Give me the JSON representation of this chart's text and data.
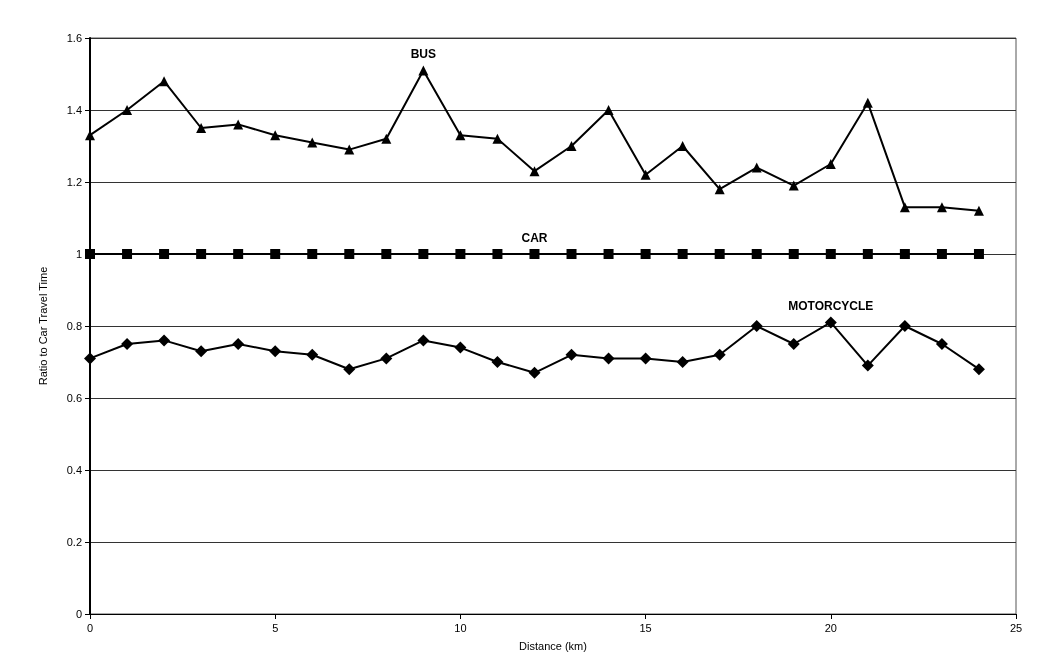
{
  "chart_data": {
    "type": "line",
    "xlabel": "Distance (km)",
    "ylabel": "Ratio to Car Travel Time",
    "x": [
      0,
      1,
      2,
      3,
      4,
      5,
      6,
      7,
      8,
      9,
      10,
      11,
      12,
      13,
      14,
      15,
      16,
      17,
      18,
      19,
      20,
      21,
      22,
      23,
      24
    ],
    "series": [
      {
        "name": "BUS",
        "color": "#000000",
        "marker": "triangle",
        "values": [
          1.33,
          1.4,
          1.48,
          1.35,
          1.36,
          1.33,
          1.31,
          1.29,
          1.32,
          1.51,
          1.33,
          1.32,
          1.23,
          1.3,
          1.4,
          1.22,
          1.3,
          1.18,
          1.24,
          1.19,
          1.25,
          1.42,
          1.13,
          1.13,
          1.12
        ]
      },
      {
        "name": "CAR",
        "color": "#000000",
        "marker": "square",
        "values": [
          1,
          1,
          1,
          1,
          1,
          1,
          1,
          1,
          1,
          1,
          1,
          1,
          1,
          1,
          1,
          1,
          1,
          1,
          1,
          1,
          1,
          1,
          1,
          1,
          1
        ]
      },
      {
        "name": "MOTORCYCLE",
        "color": "#000000",
        "marker": "diamond",
        "values": [
          0.71,
          0.75,
          0.76,
          0.73,
          0.75,
          0.73,
          0.72,
          0.68,
          0.71,
          0.76,
          0.74,
          0.7,
          0.67,
          0.72,
          0.71,
          0.71,
          0.7,
          0.72,
          0.8,
          0.75,
          0.81,
          0.69,
          0.8,
          0.75,
          0.68
        ]
      }
    ],
    "xlim": [
      0,
      25
    ],
    "xticks": [
      0,
      5,
      10,
      15,
      20,
      25
    ],
    "ylim": [
      0,
      1.6
    ],
    "yticks": [
      0,
      0.2,
      0.4,
      0.6,
      0.8,
      1,
      1.2,
      1.4,
      1.6
    ],
    "grid": "y",
    "legend": false
  }
}
